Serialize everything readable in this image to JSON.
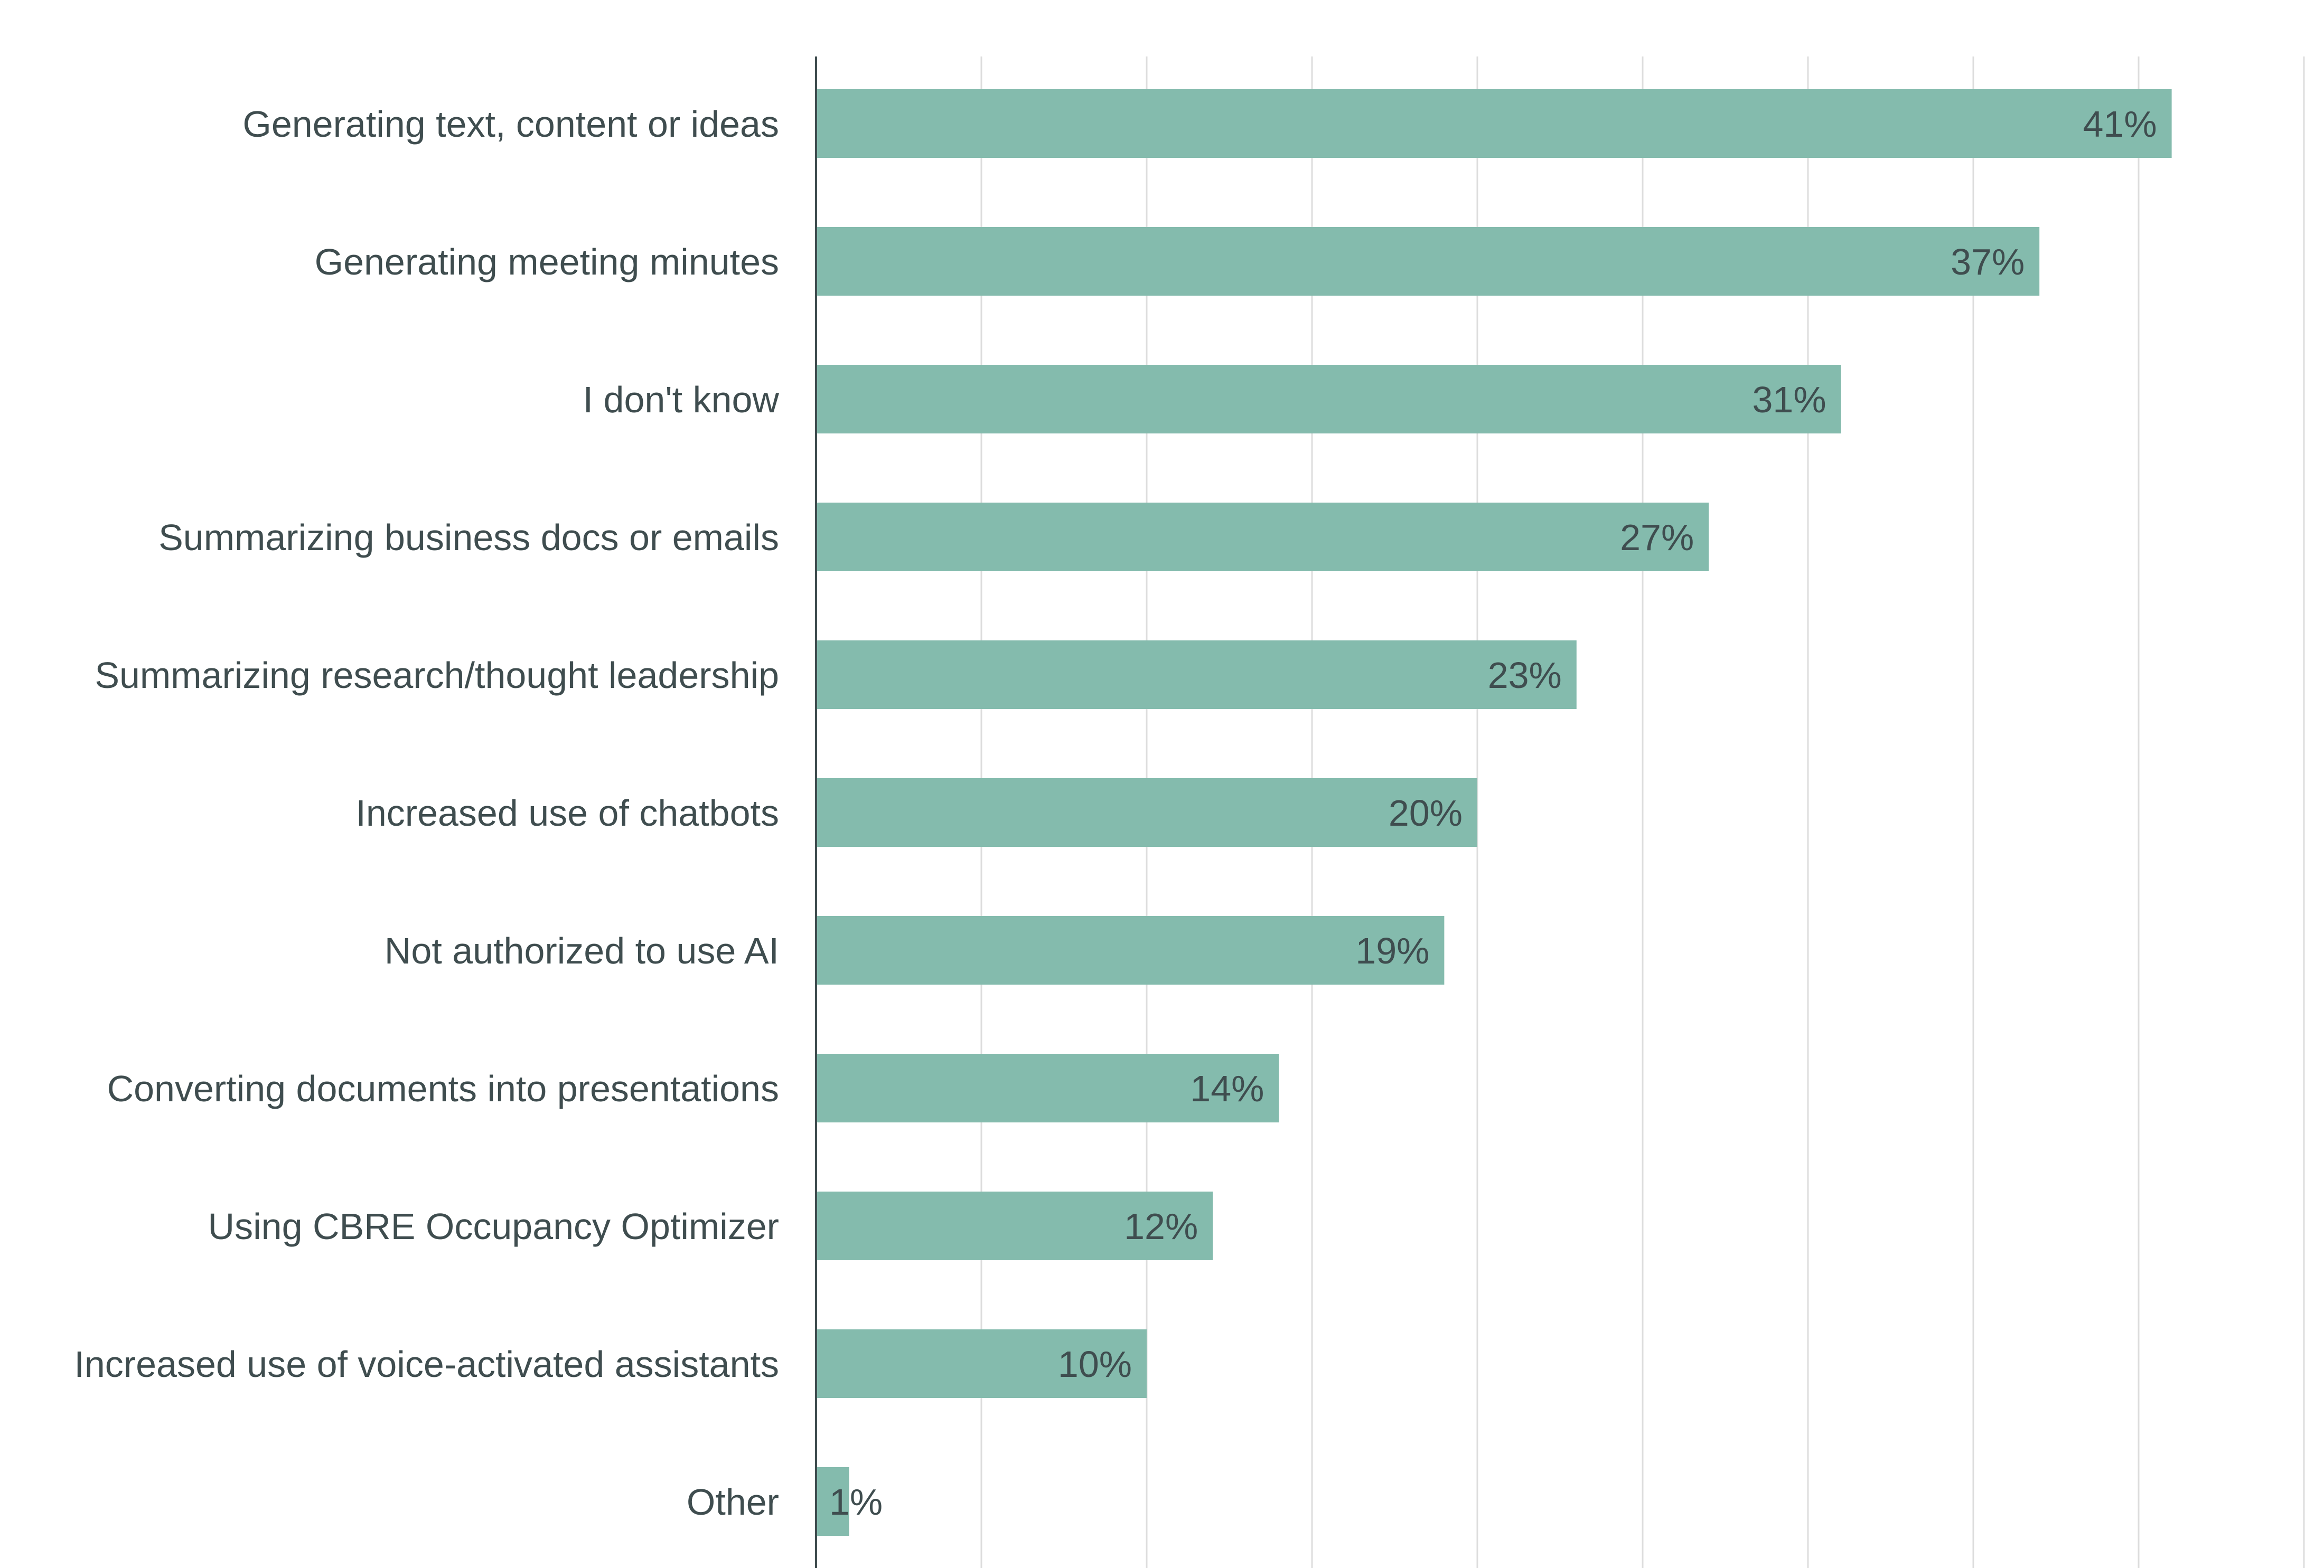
{
  "chart_data": {
    "type": "bar",
    "orientation": "horizontal",
    "categories": [
      "Generating text, content or ideas",
      "Generating meeting minutes",
      "I don't know",
      "Summarizing business docs or emails",
      "Summarizing research/thought leadership",
      "Increased use of chatbots",
      "Not authorized to use AI",
      "Converting documents into presentations",
      "Using CBRE Occupancy Optimizer",
      "Increased use of voice-activated assistants",
      "Other"
    ],
    "values": [
      41,
      37,
      31,
      27,
      23,
      20,
      19,
      14,
      12,
      10,
      1
    ],
    "value_labels": [
      "41%",
      "37%",
      "31%",
      "27%",
      "23%",
      "20%",
      "19%",
      "14%",
      "12%",
      "10%",
      "1%"
    ],
    "unit": "%",
    "xlim": [
      0,
      45
    ],
    "grid_step": 5,
    "grid": true,
    "legend": "none",
    "colors": {
      "bar": "#84bbad",
      "text": "#3f4d4f",
      "grid": "#dddddd",
      "axis": "#3f4d4f"
    }
  }
}
